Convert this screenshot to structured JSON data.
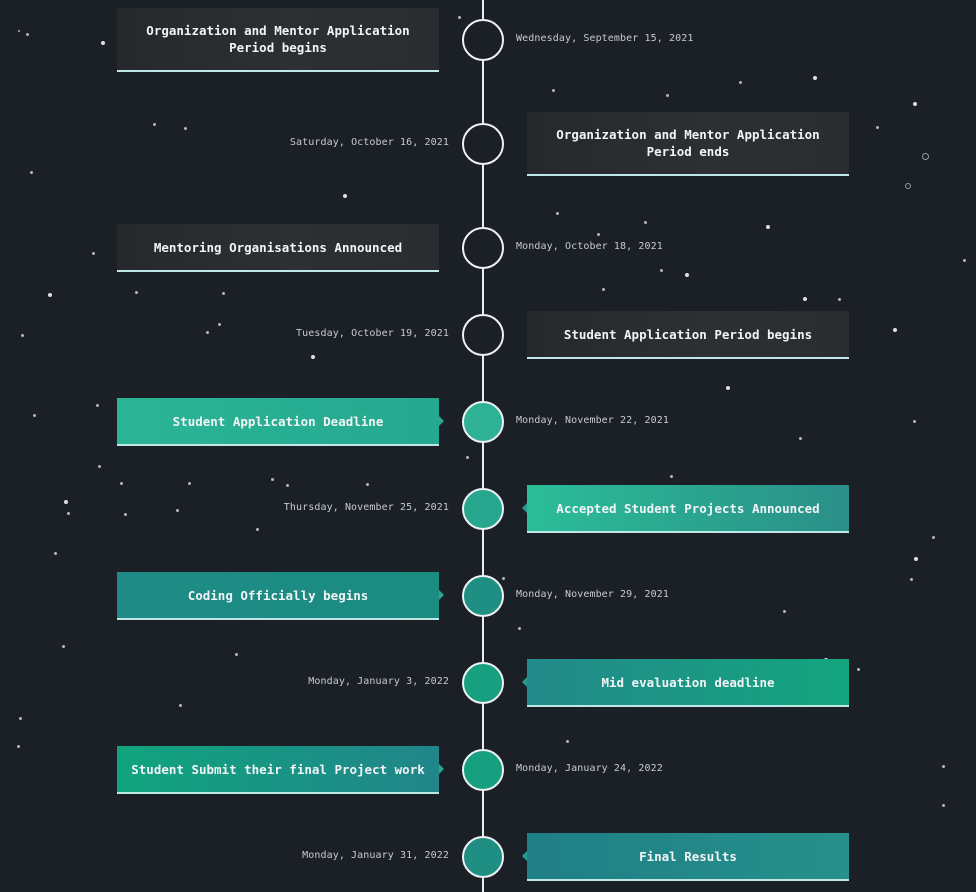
{
  "timeline": {
    "events": [
      {
        "title": "Organization and Mentor Application Period begins",
        "date": "Wednesday, September 15, 2021"
      },
      {
        "title": "Organization and Mentor Application Period ends",
        "date": "Saturday, October 16, 2021"
      },
      {
        "title": "Mentoring Organisations Announced",
        "date": "Monday, October 18, 2021"
      },
      {
        "title": "Student Application Period begins",
        "date": "Tuesday, October 19, 2021"
      },
      {
        "title": "Student Application Deadline",
        "date": "Monday, November 22, 2021"
      },
      {
        "title": "Accepted Student Projects Announced",
        "date": "Thursday, November 25, 2021"
      },
      {
        "title": "Coding Officially begins",
        "date": "Monday, November 29, 2021"
      },
      {
        "title": "Mid evaluation deadline",
        "date": "Monday, January 3, 2022"
      },
      {
        "title": "Student Submit their final Project work",
        "date": "Monday, January 24, 2022"
      },
      {
        "title": "Final Results",
        "date": "Monday, January 31, 2022"
      }
    ]
  },
  "colors": {
    "background": "#1b1f26",
    "line": "#e9eef2",
    "card_dark": "#2b2d31",
    "accent_teal": "#2ab595",
    "accent_green": "#12a57e"
  }
}
